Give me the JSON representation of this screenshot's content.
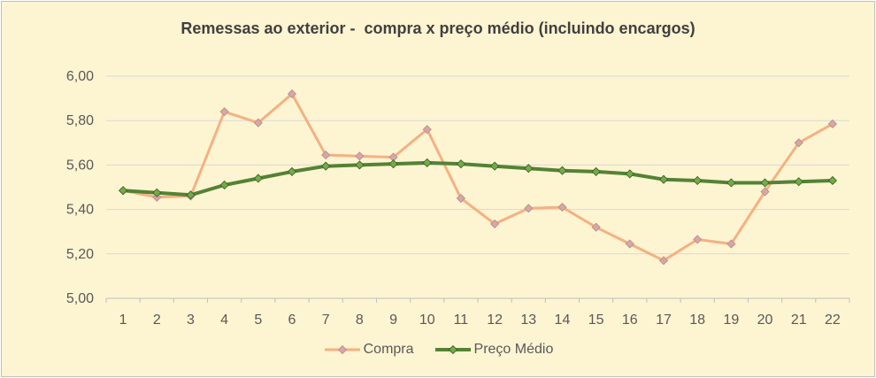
{
  "chart_data": {
    "type": "line",
    "title": "Remessas ao exterior -  compra x preço médio (incluindo encargos)",
    "xlabel": "",
    "ylabel": "",
    "categories": [
      "1",
      "2",
      "3",
      "4",
      "5",
      "6",
      "7",
      "8",
      "9",
      "10",
      "11",
      "12",
      "13",
      "14",
      "15",
      "16",
      "17",
      "18",
      "19",
      "20",
      "21",
      "22"
    ],
    "ylim": [
      5.0,
      6.0
    ],
    "yticks": [
      "5,00",
      "5,20",
      "5,40",
      "5,60",
      "5,80",
      "6,00"
    ],
    "yticks_values": [
      5.0,
      5.2,
      5.4,
      5.6,
      5.8,
      6.0
    ],
    "grid": true,
    "legend_position": "bottom",
    "series": [
      {
        "name": "Compra",
        "color": "#f4b183",
        "marker_color": "#d9a5a5",
        "values": [
          5.485,
          5.455,
          5.46,
          5.84,
          5.79,
          5.92,
          5.645,
          5.64,
          5.635,
          5.76,
          5.45,
          5.335,
          5.405,
          5.41,
          5.32,
          5.245,
          5.17,
          5.265,
          5.245,
          5.48,
          5.7,
          5.785
        ]
      },
      {
        "name": "Preço Médio",
        "color": "#548235",
        "marker_color": "#70ad47",
        "values": [
          5.485,
          5.475,
          5.465,
          5.51,
          5.54,
          5.57,
          5.595,
          5.6,
          5.605,
          5.61,
          5.605,
          5.595,
          5.585,
          5.575,
          5.57,
          5.56,
          5.535,
          5.53,
          5.52,
          5.52,
          5.525,
          5.53
        ]
      }
    ]
  }
}
